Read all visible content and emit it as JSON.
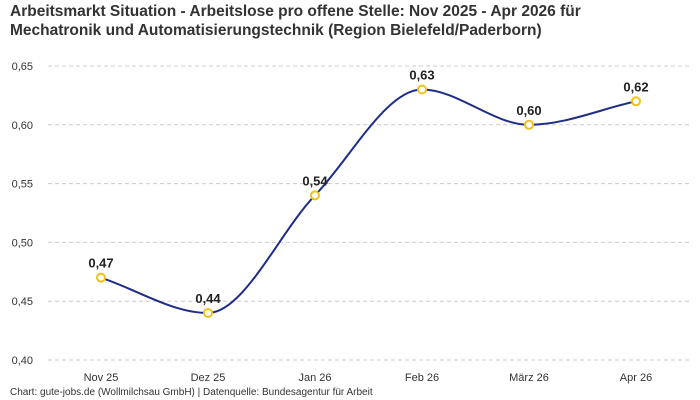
{
  "title_line1": "Arbeitsmarkt Situation - Arbeitslose pro offene Stelle: Nov 2025 - Apr 2026 für",
  "title_line2": "Mechatronik und Automatisierungstechnik (Region Bielefeld/Paderborn)",
  "footer": "Chart: gute-jobs.de (Wollmilchsau GmbH) | Datenquelle: Bundesagentur für Arbeit",
  "chart_data": {
    "type": "line",
    "categories": [
      "Nov 25",
      "Dez 25",
      "Jan 26",
      "Feb 26",
      "März 26",
      "Apr 26"
    ],
    "series": [
      {
        "values": [
          0.47,
          0.44,
          0.54,
          0.63,
          0.6,
          0.62
        ]
      }
    ],
    "data_labels": [
      "0,47",
      "0,44",
      "0,54",
      "0,63",
      "0,60",
      "0,62"
    ],
    "yticks": [
      0.4,
      0.45,
      0.5,
      0.55,
      0.6,
      0.65
    ],
    "ytick_labels": [
      "0,40",
      "0,45",
      "0,50",
      "0,55",
      "0,60",
      "0,65"
    ],
    "ylim": [
      0.4,
      0.65
    ],
    "grid": true,
    "line_color": "#1f2d86",
    "marker_color": "#f2c21b",
    "grid_color": "#cccccc"
  }
}
